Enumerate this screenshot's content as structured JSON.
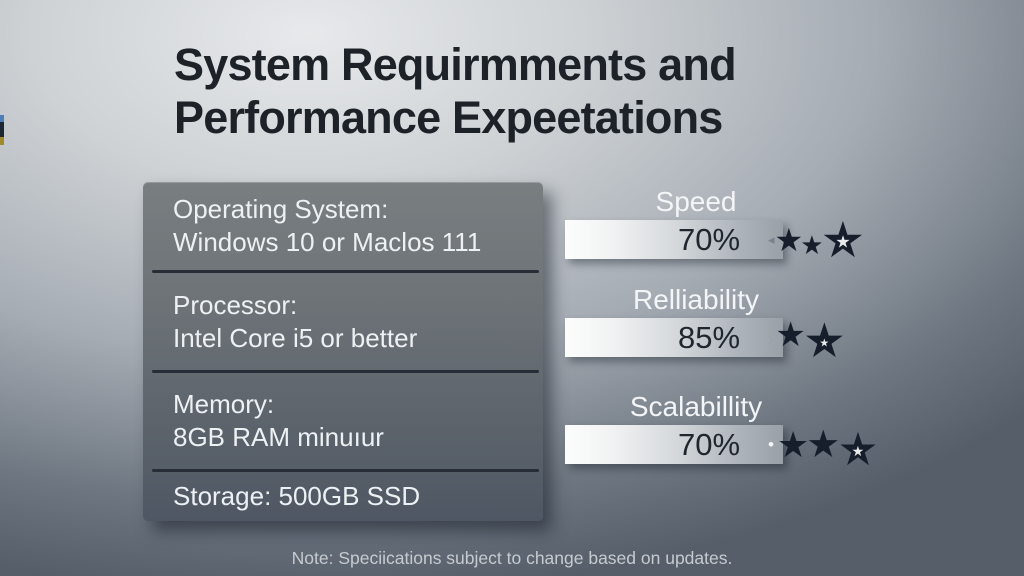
{
  "slide": {
    "title_lines": [
      "System Requirmments and",
      "Performance Expeetations"
    ],
    "note": "Note: Speciications subject to change based on updates."
  },
  "requirements": [
    {
      "label": "Operating System:",
      "value": "Windows 10 or Maclos 111"
    },
    {
      "label": "Processor:",
      "value": "Intel Core i5 or better"
    },
    {
      "label": "Memory:",
      "value": "8GB RAM minuıur"
    },
    {
      "label": "Storage: 500GB SSD",
      "value": ""
    }
  ],
  "metrics": [
    {
      "label": "Speed",
      "percent_label": "70%",
      "marker": "◂",
      "stars": 3
    },
    {
      "label": "Relliability",
      "percent_label": "85%",
      "marker": "›",
      "stars": 2
    },
    {
      "label": "Scalabillity",
      "percent_label": "70%",
      "marker": "•",
      "stars": 3
    }
  ],
  "icons": {
    "star_glyph": "★"
  },
  "colors": {
    "star": "#161e2b",
    "title_text": "#1d2229",
    "panel_text": "#eef1f4",
    "bar_text": "#20262e",
    "note_text": "#c6cbd0",
    "divider": "#262d36"
  },
  "chart_data": {
    "type": "bar",
    "categories": [
      "Speed",
      "Relliability",
      "Scalabillity"
    ],
    "values": [
      70,
      85,
      70
    ],
    "value_labels": [
      "70%",
      "85%",
      "70%"
    ],
    "star_ratings": [
      3,
      2,
      3
    ],
    "title": "Performance Expeetations",
    "xlabel": "",
    "ylabel": "",
    "ylim": [
      0,
      100
    ],
    "legend": "none",
    "grid": false
  }
}
